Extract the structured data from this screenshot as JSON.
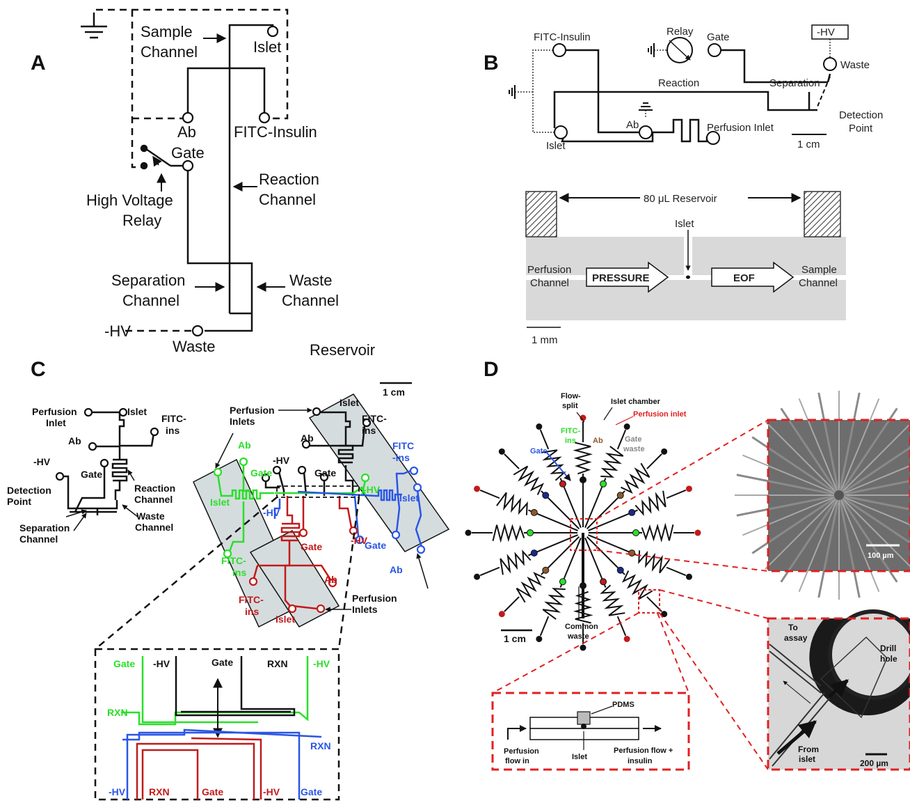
{
  "colors": {
    "black": "#111111",
    "green": "#2adf2a",
    "blue": "#2a55e6",
    "red": "#c21a1a",
    "dashed_red": "#e02020",
    "panel_gray": "#d9d9d9",
    "chip_box": "#d5dcde",
    "micro_bg": "#6d6d6d",
    "micro_bg2": "#d7d7d7"
  },
  "panels": {
    "a": "A",
    "b": "B",
    "c": "C",
    "d": "D"
  },
  "panel_a": {
    "sample_channel": [
      "Sample",
      "Channel"
    ],
    "islet": "Islet",
    "ab": "Ab",
    "fitc_insulin": "FITC-Insulin",
    "gate": "Gate",
    "reaction_channel": [
      "Reaction",
      "Channel"
    ],
    "hv_relay": [
      "High Voltage",
      "Relay"
    ],
    "separation_channel": [
      "Separation",
      "Channel"
    ],
    "waste_channel": [
      "Waste",
      "Channel"
    ],
    "neg_hv": "-HV",
    "waste": "Waste",
    "reservoir": "Reservoir"
  },
  "panel_b": {
    "fitc_insulin": "FITC-Insulin",
    "relay": "Relay",
    "gate": "Gate",
    "neg_hv": "-HV",
    "waste": "Waste",
    "reaction": "Reaction",
    "separation": "Separation",
    "detection_point": [
      "Detection",
      "Point"
    ],
    "ab": "Ab",
    "islet": "Islet",
    "perfusion_inlet": "Perfusion Inlet",
    "scale_1cm": "1 cm",
    "reservoir": "80 μL Reservoir",
    "islet2": "Islet",
    "perfusion_channel": [
      "Perfusion",
      "Channel"
    ],
    "pressure": "PRESSURE",
    "eof": "EOF",
    "sample_channel": [
      "Sample",
      "Channel"
    ],
    "scale_1mm": "1 mm"
  },
  "panel_c": {
    "scale": "1 cm",
    "left": {
      "perfusion_inlet": [
        "Perfusion",
        "Inlet"
      ],
      "islet": "Islet",
      "fitc_ins": [
        "FITC-",
        "ins"
      ],
      "ab": "Ab",
      "neg_hv": "-HV",
      "gate": "Gate",
      "detection_point": [
        "Detection",
        "Point"
      ],
      "reaction_channel": [
        "Reaction",
        "Channel"
      ],
      "waste_channel": [
        "Waste",
        "Channel"
      ],
      "separation_channel": [
        "Separation",
        "Channel"
      ]
    },
    "right": {
      "perfusion_inlets_top": [
        "Perfusion",
        "Inlets"
      ],
      "islet_top": "Islet",
      "fitc_top": [
        "FITC-",
        "ins"
      ],
      "ab_top": "Ab",
      "neg_hv_top": "-HV",
      "gate_top": "Gate",
      "gate_green": "Gate",
      "ab_green": "Ab",
      "islet_green": "Islet",
      "fitc_green": [
        "FITC-",
        "ins"
      ],
      "neg_hv_blue": "-HV",
      "gate_blue": "Gate",
      "ab_blue": "Ab",
      "islet_blue": "Islet",
      "fitc_blue": [
        "FITC",
        "-ins"
      ],
      "hv_green": "-HV",
      "gate_red": "Gate",
      "hv_red": "-HV",
      "ab_red": "Ab",
      "fitc_red": [
        "FITC-",
        "ins"
      ],
      "islet_red": "Islet",
      "perfusion_inlets_bottom": [
        "Perfusion",
        "Inlets"
      ]
    },
    "inset": {
      "gate_green": "Gate",
      "hv_black": "-HV",
      "gate_black": "Gate",
      "rxn_black": "RXN",
      "hv_green": "-HV",
      "rxn_green": "RXN",
      "rxn_blue": "RXN",
      "hv_blue": "-HV",
      "rxn_red": "RXN",
      "gate_red": "Gate",
      "hv_red": "-HV",
      "gate_blue": "Gate"
    }
  },
  "panel_d": {
    "flow_split": [
      "Flow-",
      "split"
    ],
    "islet_chamber": "Islet chamber",
    "perfusion_inlet": "Perfusion inlet",
    "gate": "Gate",
    "fitc_ins": [
      "FITC-",
      "ins"
    ],
    "ab": "Ab",
    "gate_waste": [
      "Gate",
      "waste"
    ],
    "common_waste": [
      "Common",
      "waste"
    ],
    "scale_1cm": "1 cm",
    "scale_100": "100 µm",
    "to_assay": [
      "To",
      "assay"
    ],
    "drill_hole": [
      "Drill",
      "hole"
    ],
    "from_islet": [
      "From",
      "islet"
    ],
    "scale_200": "200 µm",
    "pdms": "PDMS",
    "perfusion_flow_in": [
      "Perfusion",
      "flow in"
    ],
    "islet": "Islet",
    "perfusion_flow_out": [
      "Perfusion flow +",
      "insulin"
    ]
  }
}
